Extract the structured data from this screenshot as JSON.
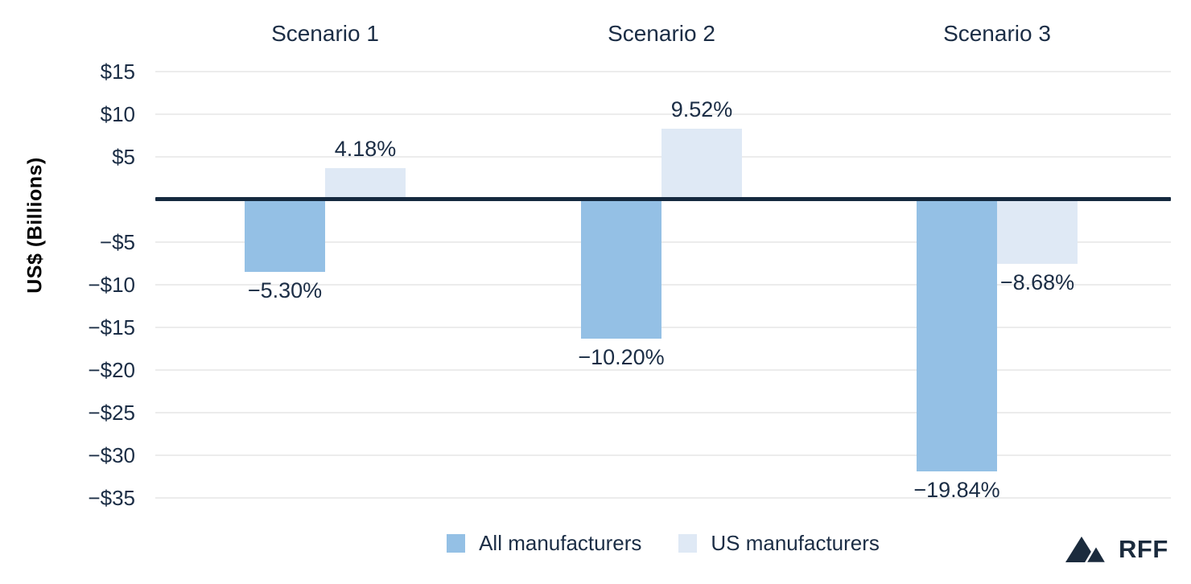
{
  "chart": {
    "legend": [
      {
        "label": "All manufacturers",
        "color": "#94c0e5"
      },
      {
        "label": "US manufacturers",
        "color": "#dfe9f5"
      }
    ],
    "branding": {
      "logo": "rff-mountains-logo",
      "text": "RFF"
    }
  },
  "chart_data": {
    "type": "bar",
    "title": "",
    "categories": [
      "Scenario 1",
      "Scenario 2",
      "Scenario 3"
    ],
    "series": [
      {
        "name": "All manufacturers",
        "color": "#94c0e5",
        "values_usd_billions": [
          -8.5,
          -16.4,
          -31.9
        ],
        "labels": [
          "−5.30%",
          "−10.20%",
          "−19.84%"
        ]
      },
      {
        "name": "US manufacturers",
        "color": "#dfe9f5",
        "values_usd_billions": [
          3.6,
          8.3,
          -7.6
        ],
        "labels": [
          "4.18%",
          "9.52%",
          "−8.68%"
        ]
      }
    ],
    "xlabel": "",
    "ylabel": "US$ (Billions)",
    "ylim": [
      -37,
      17
    ],
    "yticks": [
      {
        "value": 15,
        "label": "$15"
      },
      {
        "value": 10,
        "label": "$10"
      },
      {
        "value": 5,
        "label": "$5"
      },
      {
        "value": 0,
        "label": ""
      },
      {
        "value": -5,
        "label": "−$5"
      },
      {
        "value": -10,
        "label": "−$10"
      },
      {
        "value": -15,
        "label": "−$15"
      },
      {
        "value": -20,
        "label": "−$20"
      },
      {
        "value": -25,
        "label": "−$25"
      },
      {
        "value": -30,
        "label": "−$30"
      },
      {
        "value": -35,
        "label": "−$35"
      }
    ],
    "grid": "horizontal",
    "legend_position": "bottom-center",
    "bar_value_unit": "US$ billions (bar heights)",
    "bar_label_unit": "percent change (data labels)",
    "colors": {
      "axis_line": "#15293f",
      "gridline": "#ececec",
      "text": "#1b2d45",
      "axis_title": "#000000"
    }
  }
}
